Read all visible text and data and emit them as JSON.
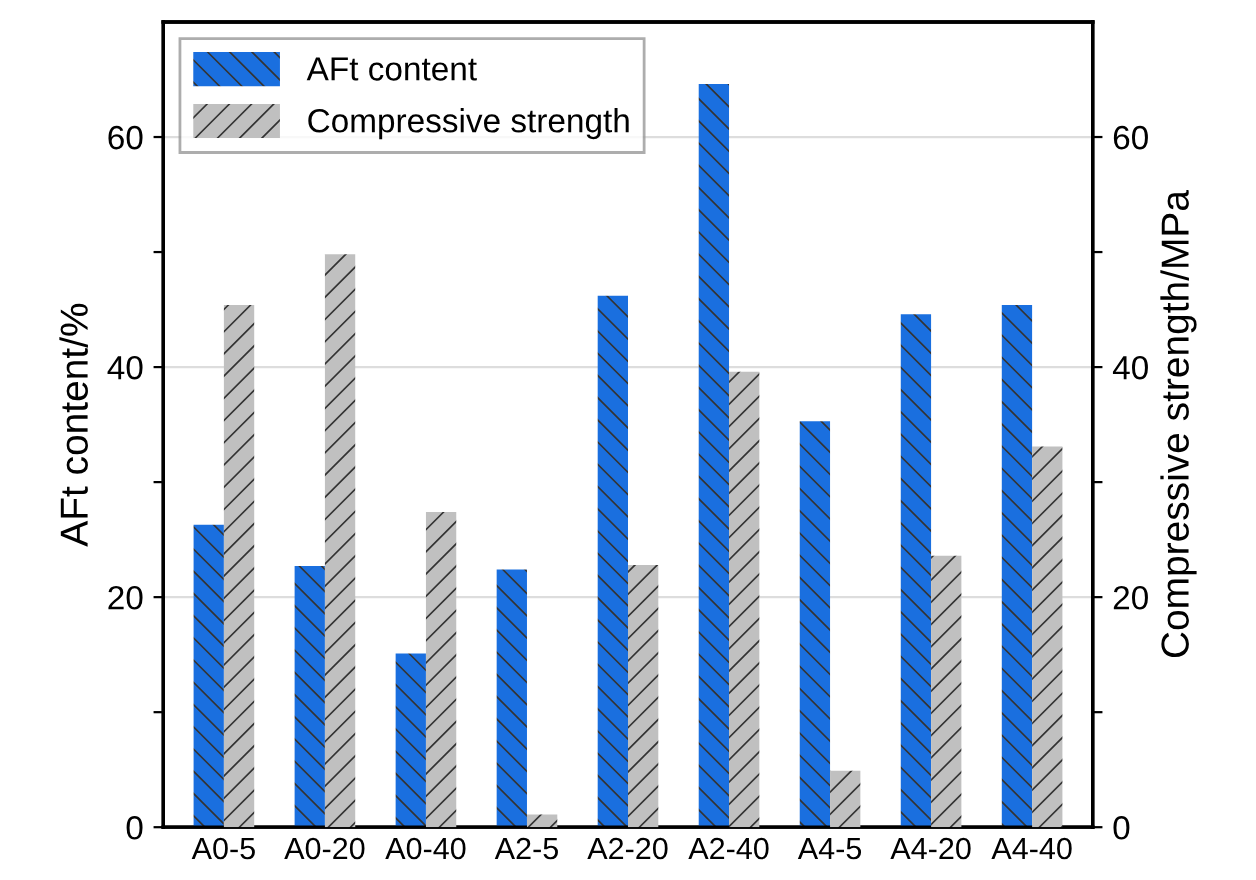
{
  "chart_data": {
    "type": "bar",
    "ylabel": "AFt content/%",
    "y2label": "Compressive strength/MPa",
    "categories": [
      "A0-5",
      "A0-20",
      "A0-40",
      "A2-5",
      "A2-20",
      "A2-40",
      "A4-5",
      "A4-20",
      "A4-40"
    ],
    "series": [
      {
        "name": "AFt content",
        "color": "#1a6fdf",
        "values": [
          26.3,
          22.7,
          15.1,
          22.4,
          46.2,
          64.6,
          35.3,
          44.6,
          45.4
        ]
      },
      {
        "name": "Compressive strength",
        "color": "#c0c0c0",
        "axis": "y2",
        "values": [
          45.4,
          49.8,
          27.4,
          1.1,
          22.8,
          39.6,
          4.9,
          23.6,
          33.1
        ]
      }
    ],
    "ylim": [
      0,
      70
    ],
    "yticks": [
      0,
      {
        "value": 10,
        "label": null
      },
      20,
      {
        "value": 30,
        "label": null
      },
      40,
      {
        "value": 50,
        "label": null
      },
      60
    ],
    "y2lim": [
      0,
      70
    ],
    "y2ticks": [
      0,
      {
        "value": 10,
        "label": null
      },
      20,
      {
        "value": 30,
        "label": null
      },
      40,
      {
        "value": 50,
        "label": null
      },
      60
    ],
    "grid": "y",
    "legend": "top left"
  }
}
